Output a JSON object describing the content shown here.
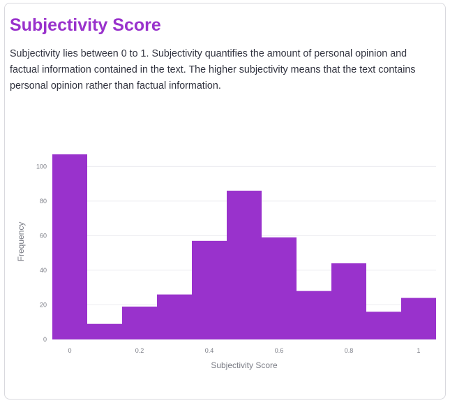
{
  "section": {
    "title": "Subjectivity Score",
    "description": "Subjectivity lies between 0 to 1. Subjectivity quantifies the amount of personal opinion and factual information contained in the text. The higher subjectivity means that the text contains personal opinion rather than factual information."
  },
  "chart_data": {
    "type": "bar",
    "title": "",
    "xlabel": "Subjectivity Score",
    "ylabel": "Frequency",
    "bin_width": 0.1,
    "bin_centers": [
      0,
      0.1,
      0.2,
      0.3,
      0.4,
      0.5,
      0.6,
      0.7,
      0.8,
      0.9,
      1.0
    ],
    "values": [
      107,
      9,
      19,
      26,
      57,
      86,
      59,
      28,
      44,
      16,
      24
    ],
    "xlim": [
      -0.05,
      1.05
    ],
    "ylim": [
      0,
      107
    ],
    "xticks": [
      0,
      0.2,
      0.4,
      0.6,
      0.8,
      1
    ],
    "xtick_labels": [
      "0",
      "0.2",
      "0.4",
      "0.6",
      "0.8",
      "1"
    ],
    "yticks": [
      0,
      20,
      40,
      60,
      80,
      100
    ],
    "ytick_labels": [
      "0",
      "20",
      "40",
      "60",
      "80",
      "100"
    ],
    "grid": true,
    "bar_color": "#9932cc",
    "grid_color": "#ececf0"
  }
}
